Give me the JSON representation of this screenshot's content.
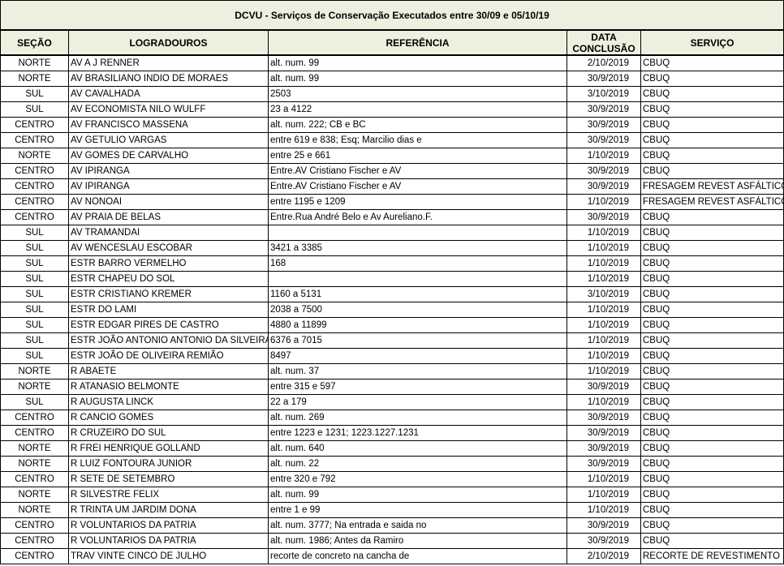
{
  "title": "DCVU - Serviços de Conservação Executados entre 30/09 e 05/10/19",
  "headers": {
    "secao": "SEÇÃO",
    "logradouros": "LOGRADOUROS",
    "referencia": "REFERÊNCIA",
    "data_line1": "DATA",
    "data_line2": "CONCLUSÃO",
    "servico": "SERVIÇO"
  },
  "header_bg": "#ebf1de",
  "rows": [
    [
      "NORTE",
      "AV A J RENNER",
      "alt. num. 99",
      "2/10/2019",
      "CBUQ"
    ],
    [
      "NORTE",
      "AV BRASILIANO INDIO DE MORAES",
      "alt. num. 99",
      "30/9/2019",
      "CBUQ"
    ],
    [
      "SUL",
      "AV CAVALHADA",
      "2503",
      "3/10/2019",
      "CBUQ"
    ],
    [
      "SUL",
      "AV ECONOMISTA NILO WULFF",
      "23 a 4122",
      "30/9/2019",
      "CBUQ"
    ],
    [
      "CENTRO",
      "AV FRANCISCO MASSENA",
      "alt. num. 222; CB e BC",
      "30/9/2019",
      "CBUQ"
    ],
    [
      "CENTRO",
      "AV GETULIO VARGAS",
      "entre 619 e 838; Esq; Marcilio dias e",
      "30/9/2019",
      "CBUQ"
    ],
    [
      "NORTE",
      "AV GOMES DE CARVALHO",
      "entre 25 e 661",
      "1/10/2019",
      "CBUQ"
    ],
    [
      "CENTRO",
      "AV IPIRANGA",
      "Entre.AV Cristiano Fischer e AV",
      "30/9/2019",
      "CBUQ"
    ],
    [
      "CENTRO",
      "AV IPIRANGA",
      "Entre.AV Cristiano Fischer e AV",
      "30/9/2019",
      "FRESAGEM REVEST ASFÁLTICO"
    ],
    [
      "CENTRO",
      "AV NONOAI",
      "entre 1195 e 1209",
      "1/10/2019",
      "FRESAGEM REVEST ASFÁLTICO"
    ],
    [
      "CENTRO",
      "AV PRAIA DE BELAS",
      "Entre.Rua André Belo e Av Aureliano.F.",
      "30/9/2019",
      "CBUQ"
    ],
    [
      "SUL",
      "AV TRAMANDAI",
      "",
      "1/10/2019",
      "CBUQ"
    ],
    [
      "SUL",
      "AV WENCESLAU ESCOBAR",
      "3421 a 3385",
      "1/10/2019",
      "CBUQ"
    ],
    [
      "SUL",
      "ESTR BARRO VERMELHO",
      "168",
      "1/10/2019",
      "CBUQ"
    ],
    [
      "SUL",
      "ESTR CHAPEU DO SOL",
      "",
      "1/10/2019",
      "CBUQ"
    ],
    [
      "SUL",
      "ESTR CRISTIANO KREMER",
      "1160 a 5131",
      "3/10/2019",
      "CBUQ"
    ],
    [
      "SUL",
      "ESTR DO LAMI",
      "2038 a 7500",
      "1/10/2019",
      "CBUQ"
    ],
    [
      "SUL",
      "ESTR EDGAR PIRES DE CASTRO",
      "4880 a 11899",
      "1/10/2019",
      "CBUQ"
    ],
    [
      "SUL",
      "ESTR JOÃO ANTONIO ANTONIO DA SILVEIRA",
      "6376 a 7015",
      "1/10/2019",
      "CBUQ"
    ],
    [
      "SUL",
      "ESTR JOÃO DE OLIVEIRA REMIÃO",
      "8497",
      "1/10/2019",
      "CBUQ"
    ],
    [
      "NORTE",
      "R ABAETE",
      "alt. num. 37",
      "1/10/2019",
      "CBUQ"
    ],
    [
      "NORTE",
      "R ATANASIO BELMONTE",
      "entre 315 e 597",
      "30/9/2019",
      "CBUQ"
    ],
    [
      "SUL",
      "R AUGUSTA LINCK",
      "22 a 179",
      "1/10/2019",
      "CBUQ"
    ],
    [
      "CENTRO",
      "R CANCIO GOMES",
      "alt. num. 269",
      "30/9/2019",
      "CBUQ"
    ],
    [
      "CENTRO",
      "R CRUZEIRO DO SUL",
      "entre 1223 e 1231; 1223.1227.1231",
      "30/9/2019",
      "CBUQ"
    ],
    [
      "NORTE",
      "R FREI HENRIQUE GOLLAND",
      "alt. num. 640",
      "30/9/2019",
      "CBUQ"
    ],
    [
      "NORTE",
      "R LUIZ FONTOURA JUNIOR",
      "alt. num. 22",
      "30/9/2019",
      "CBUQ"
    ],
    [
      "CENTRO",
      "R SETE DE SETEMBRO",
      "entre 320 e 792",
      "1/10/2019",
      "CBUQ"
    ],
    [
      "NORTE",
      "R SILVESTRE FELIX",
      "alt. num. 99",
      "1/10/2019",
      "CBUQ"
    ],
    [
      "NORTE",
      "R TRINTA UM JARDIM DONA",
      "entre 1 e 99",
      "1/10/2019",
      "CBUQ"
    ],
    [
      "CENTRO",
      "R VOLUNTARIOS DA PATRIA",
      "alt. num. 3777; Na entrada e saida no",
      "30/9/2019",
      "CBUQ"
    ],
    [
      "CENTRO",
      "R VOLUNTARIOS DA PATRIA",
      "alt. num. 1986; Antes da Ramiro",
      "30/9/2019",
      "CBUQ"
    ],
    [
      "CENTRO",
      "TRAV VINTE CINCO DE JULHO",
      "recorte de concreto na cancha de",
      "2/10/2019",
      "RECORTE DE REVESTIMENTO"
    ]
  ]
}
